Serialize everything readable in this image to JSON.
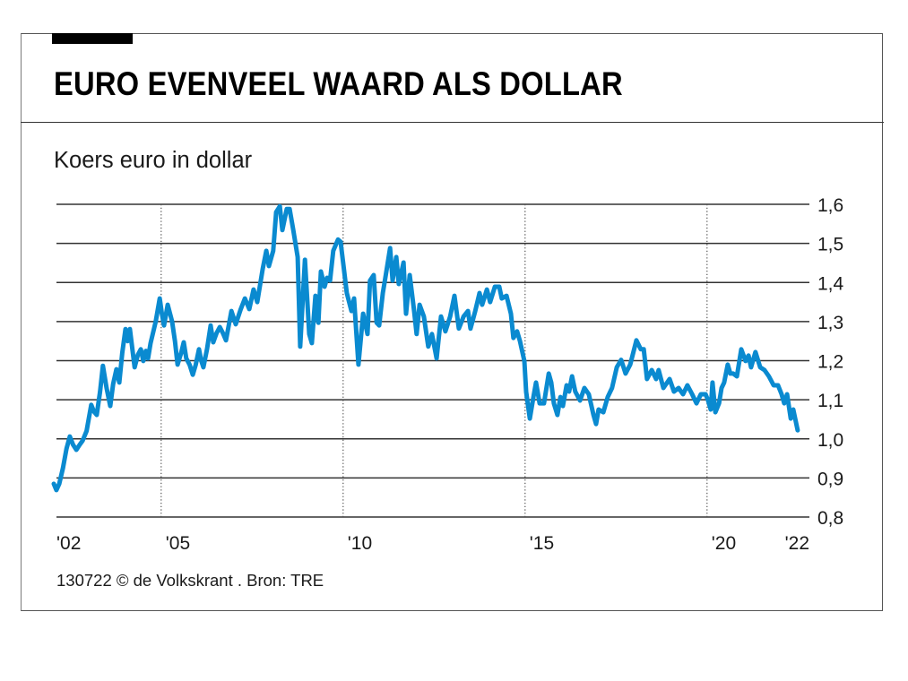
{
  "header": {
    "title": "EURO EVENVEEL WAARD ALS DOLLAR"
  },
  "chart_data": {
    "type": "line",
    "title": "EURO EVENVEEL WAARD ALS DOLLAR",
    "subtitle": "Koers euro in dollar",
    "xlabel": "",
    "ylabel": "",
    "ylim": [
      0.8,
      1.6
    ],
    "xlim": [
      2002,
      2022.6
    ],
    "grid": true,
    "y_ticks": [
      {
        "value": 1.6,
        "label": "1,6"
      },
      {
        "value": 1.5,
        "label": "1,5"
      },
      {
        "value": 1.4,
        "label": "1,4"
      },
      {
        "value": 1.3,
        "label": "1,3"
      },
      {
        "value": 1.2,
        "label": "1,2"
      },
      {
        "value": 1.1,
        "label": "1,1"
      },
      {
        "value": 1.0,
        "label": "1,0"
      },
      {
        "value": 0.9,
        "label": "0,9"
      },
      {
        "value": 0.8,
        "label": "0,8"
      }
    ],
    "y_axis_position": "right",
    "x_ticks": [
      {
        "value": 2002,
        "label": "'02"
      },
      {
        "value": 2005,
        "label": "'05"
      },
      {
        "value": 2010,
        "label": "'10"
      },
      {
        "value": 2015,
        "label": "'15"
      },
      {
        "value": 2020,
        "label": "'20"
      },
      {
        "value": 2022,
        "label": "'22"
      }
    ],
    "vertical_reference_lines": [
      2005,
      2010,
      2015,
      2020
    ],
    "series": [
      {
        "name": "Koers euro in dollar",
        "color": "#0a8ad0",
        "points": [
          [
            2002.05,
            0.885
          ],
          [
            2002.12,
            0.869
          ],
          [
            2002.2,
            0.885
          ],
          [
            2002.3,
            0.925
          ],
          [
            2002.4,
            0.975
          ],
          [
            2002.49,
            1.006
          ],
          [
            2002.58,
            0.985
          ],
          [
            2002.67,
            0.972
          ],
          [
            2002.76,
            0.985
          ],
          [
            2002.84,
            0.995
          ],
          [
            2002.95,
            1.02
          ],
          [
            2003.08,
            1.087
          ],
          [
            2003.15,
            1.07
          ],
          [
            2003.23,
            1.061
          ],
          [
            2003.32,
            1.12
          ],
          [
            2003.4,
            1.187
          ],
          [
            2003.5,
            1.13
          ],
          [
            2003.6,
            1.084
          ],
          [
            2003.68,
            1.14
          ],
          [
            2003.77,
            1.178
          ],
          [
            2003.85,
            1.144
          ],
          [
            2003.93,
            1.22
          ],
          [
            2004.02,
            1.281
          ],
          [
            2004.08,
            1.25
          ],
          [
            2004.14,
            1.281
          ],
          [
            2004.27,
            1.183
          ],
          [
            2004.36,
            1.215
          ],
          [
            2004.44,
            1.229
          ],
          [
            2004.51,
            1.199
          ],
          [
            2004.58,
            1.225
          ],
          [
            2004.64,
            1.206
          ],
          [
            2004.71,
            1.245
          ],
          [
            2004.85,
            1.3
          ],
          [
            2004.96,
            1.359
          ],
          [
            2005.02,
            1.32
          ],
          [
            2005.08,
            1.29
          ],
          [
            2005.18,
            1.343
          ],
          [
            2005.3,
            1.3
          ],
          [
            2005.38,
            1.25
          ],
          [
            2005.45,
            1.19
          ],
          [
            2005.55,
            1.22
          ],
          [
            2005.62,
            1.247
          ],
          [
            2005.69,
            1.206
          ],
          [
            2005.78,
            1.19
          ],
          [
            2005.87,
            1.164
          ],
          [
            2005.95,
            1.19
          ],
          [
            2006.04,
            1.229
          ],
          [
            2006.1,
            1.2
          ],
          [
            2006.16,
            1.183
          ],
          [
            2006.26,
            1.23
          ],
          [
            2006.36,
            1.29
          ],
          [
            2006.43,
            1.247
          ],
          [
            2006.52,
            1.27
          ],
          [
            2006.61,
            1.286
          ],
          [
            2006.7,
            1.27
          ],
          [
            2006.78,
            1.252
          ],
          [
            2006.93,
            1.327
          ],
          [
            2007.05,
            1.293
          ],
          [
            2007.18,
            1.33
          ],
          [
            2007.3,
            1.359
          ],
          [
            2007.42,
            1.332
          ],
          [
            2007.54,
            1.382
          ],
          [
            2007.64,
            1.35
          ],
          [
            2007.79,
            1.435
          ],
          [
            2007.89,
            1.481
          ],
          [
            2007.96,
            1.442
          ],
          [
            2008.08,
            1.481
          ],
          [
            2008.16,
            1.58
          ],
          [
            2008.26,
            1.595
          ],
          [
            2008.33,
            1.534
          ],
          [
            2008.45,
            1.588
          ],
          [
            2008.53,
            1.588
          ],
          [
            2008.63,
            1.534
          ],
          [
            2008.75,
            1.465
          ],
          [
            2008.82,
            1.236
          ],
          [
            2008.95,
            1.458
          ],
          [
            2009.07,
            1.268
          ],
          [
            2009.14,
            1.245
          ],
          [
            2009.24,
            1.366
          ],
          [
            2009.32,
            1.297
          ],
          [
            2009.39,
            1.428
          ],
          [
            2009.49,
            1.389
          ],
          [
            2009.56,
            1.412
          ],
          [
            2009.64,
            1.405
          ],
          [
            2009.73,
            1.481
          ],
          [
            2009.86,
            1.51
          ],
          [
            2009.93,
            1.504
          ],
          [
            2010.0,
            1.451
          ],
          [
            2010.1,
            1.373
          ],
          [
            2010.23,
            1.327
          ],
          [
            2010.3,
            1.359
          ],
          [
            2010.42,
            1.19
          ],
          [
            2010.55,
            1.32
          ],
          [
            2010.67,
            1.268
          ],
          [
            2010.74,
            1.405
          ],
          [
            2010.84,
            1.419
          ],
          [
            2010.92,
            1.297
          ],
          [
            2010.99,
            1.29
          ],
          [
            2011.09,
            1.373
          ],
          [
            2011.16,
            1.412
          ],
          [
            2011.29,
            1.488
          ],
          [
            2011.36,
            1.405
          ],
          [
            2011.46,
            1.465
          ],
          [
            2011.53,
            1.396
          ],
          [
            2011.66,
            1.451
          ],
          [
            2011.73,
            1.32
          ],
          [
            2011.83,
            1.419
          ],
          [
            2011.95,
            1.327
          ],
          [
            2012.02,
            1.268
          ],
          [
            2012.1,
            1.343
          ],
          [
            2012.22,
            1.313
          ],
          [
            2012.34,
            1.236
          ],
          [
            2012.44,
            1.268
          ],
          [
            2012.57,
            1.206
          ],
          [
            2012.69,
            1.313
          ],
          [
            2012.81,
            1.275
          ],
          [
            2012.94,
            1.313
          ],
          [
            2013.06,
            1.366
          ],
          [
            2013.18,
            1.282
          ],
          [
            2013.31,
            1.313
          ],
          [
            2013.43,
            1.327
          ],
          [
            2013.5,
            1.282
          ],
          [
            2013.63,
            1.327
          ],
          [
            2013.75,
            1.373
          ],
          [
            2013.82,
            1.343
          ],
          [
            2013.95,
            1.382
          ],
          [
            2014.04,
            1.35
          ],
          [
            2014.17,
            1.389
          ],
          [
            2014.29,
            1.389
          ],
          [
            2014.36,
            1.359
          ],
          [
            2014.49,
            1.366
          ],
          [
            2014.61,
            1.32
          ],
          [
            2014.68,
            1.258
          ],
          [
            2014.78,
            1.275
          ],
          [
            2014.86,
            1.25
          ],
          [
            2014.98,
            1.199
          ],
          [
            2015.03,
            1.12
          ],
          [
            2015.13,
            1.052
          ],
          [
            2015.23,
            1.107
          ],
          [
            2015.3,
            1.144
          ],
          [
            2015.4,
            1.091
          ],
          [
            2015.52,
            1.091
          ],
          [
            2015.65,
            1.167
          ],
          [
            2015.72,
            1.144
          ],
          [
            2015.79,
            1.091
          ],
          [
            2015.89,
            1.061
          ],
          [
            2015.97,
            1.107
          ],
          [
            2016.04,
            1.084
          ],
          [
            2016.14,
            1.137
          ],
          [
            2016.21,
            1.121
          ],
          [
            2016.29,
            1.16
          ],
          [
            2016.38,
            1.121
          ],
          [
            2016.51,
            1.098
          ],
          [
            2016.63,
            1.13
          ],
          [
            2016.75,
            1.114
          ],
          [
            2016.88,
            1.061
          ],
          [
            2016.95,
            1.038
          ],
          [
            2017.02,
            1.075
          ],
          [
            2017.15,
            1.068
          ],
          [
            2017.27,
            1.107
          ],
          [
            2017.39,
            1.13
          ],
          [
            2017.52,
            1.183
          ],
          [
            2017.64,
            1.202
          ],
          [
            2017.76,
            1.167
          ],
          [
            2017.89,
            1.19
          ],
          [
            2018.06,
            1.252
          ],
          [
            2018.18,
            1.229
          ],
          [
            2018.26,
            1.229
          ],
          [
            2018.35,
            1.153
          ],
          [
            2018.48,
            1.176
          ],
          [
            2018.6,
            1.153
          ],
          [
            2018.67,
            1.176
          ],
          [
            2018.8,
            1.13
          ],
          [
            2018.97,
            1.153
          ],
          [
            2019.09,
            1.121
          ],
          [
            2019.22,
            1.13
          ],
          [
            2019.34,
            1.114
          ],
          [
            2019.46,
            1.137
          ],
          [
            2019.59,
            1.114
          ],
          [
            2019.71,
            1.091
          ],
          [
            2019.83,
            1.114
          ],
          [
            2019.96,
            1.114
          ],
          [
            2020.03,
            1.098
          ],
          [
            2020.1,
            1.075
          ],
          [
            2020.15,
            1.144
          ],
          [
            2020.23,
            1.068
          ],
          [
            2020.33,
            1.091
          ],
          [
            2020.4,
            1.13
          ],
          [
            2020.47,
            1.144
          ],
          [
            2020.57,
            1.19
          ],
          [
            2020.64,
            1.167
          ],
          [
            2020.72,
            1.167
          ],
          [
            2020.82,
            1.16
          ],
          [
            2020.94,
            1.229
          ],
          [
            2021.06,
            1.199
          ],
          [
            2021.14,
            1.213
          ],
          [
            2021.21,
            1.183
          ],
          [
            2021.33,
            1.222
          ],
          [
            2021.46,
            1.183
          ],
          [
            2021.58,
            1.176
          ],
          [
            2021.7,
            1.16
          ],
          [
            2021.83,
            1.137
          ],
          [
            2021.95,
            1.137
          ],
          [
            2022.05,
            1.114
          ],
          [
            2022.12,
            1.091
          ],
          [
            2022.2,
            1.114
          ],
          [
            2022.3,
            1.052
          ],
          [
            2022.37,
            1.075
          ],
          [
            2022.49,
            1.022
          ]
        ]
      }
    ]
  },
  "footer": {
    "credit": "130722 © de Volkskrant . Bron: TRE"
  }
}
